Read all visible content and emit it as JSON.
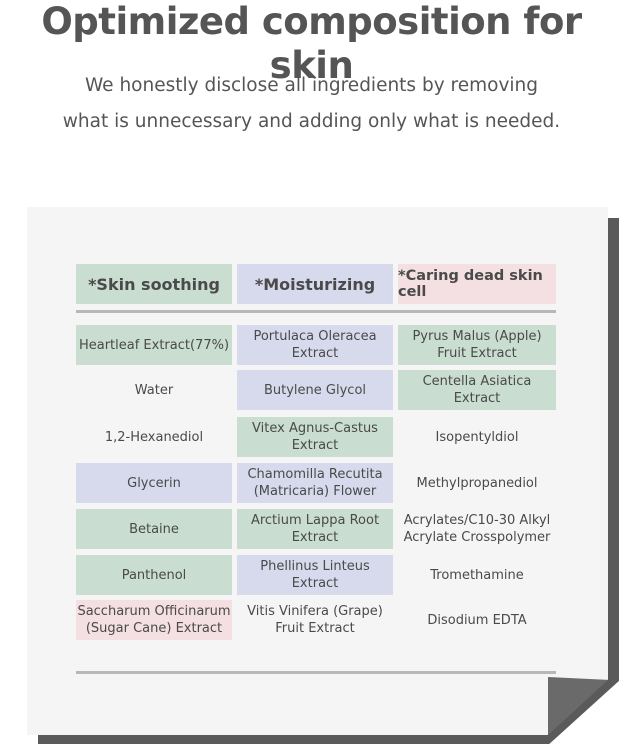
{
  "title": "Optimized composition for skin",
  "subtitle": [
    "We honestly disclose all ingredients by removing",
    "what is unnecessary and adding only what is needed."
  ],
  "colors": {
    "green": "#c9ddd0",
    "blue": "#d6daec",
    "pink": "#f4dfe2"
  },
  "columns": [
    {
      "header": "*Skin soothing",
      "color": "green",
      "items": [
        {
          "text": "Heartleaf Extract(77%)",
          "color": "green"
        },
        {
          "text": "Water",
          "color": "none"
        },
        {
          "text": "1,2-Hexanediol",
          "color": "none"
        },
        {
          "text": "Glycerin",
          "color": "blue"
        },
        {
          "text": "Betaine",
          "color": "green"
        },
        {
          "text": "Panthenol",
          "color": "green"
        },
        {
          "text": "Saccharum Officinarum (Sugar Cane) Extract",
          "color": "pink"
        }
      ]
    },
    {
      "header": "*Moisturizing",
      "color": "blue",
      "items": [
        {
          "text": "Portulaca Oleracea Extract",
          "color": "blue"
        },
        {
          "text": "Butylene Glycol",
          "color": "blue"
        },
        {
          "text": "Vitex Agnus-Castus Extract",
          "color": "green"
        },
        {
          "text": "Chamomilla Recutita (Matricaria) Flower",
          "color": "blue"
        },
        {
          "text": "Arctium Lappa Root Extract",
          "color": "green"
        },
        {
          "text": "Phellinus Linteus Extract",
          "color": "blue"
        },
        {
          "text": "Vitis Vinifera (Grape) Fruit Extract",
          "color": "none"
        }
      ]
    },
    {
      "header": "*Caring dead skin cell",
      "color": "pink",
      "items": [
        {
          "text": "Pyrus Malus (Apple) Fruit Extract",
          "color": "green"
        },
        {
          "text": "Centella Asiatica Extract",
          "color": "green"
        },
        {
          "text": "Isopentyldiol",
          "color": "none"
        },
        {
          "text": "Methylpropanediol",
          "color": "none"
        },
        {
          "text": "Acrylates/C10-30 Alkyl Acrylate Crosspolymer",
          "color": "none"
        },
        {
          "text": "Tromethamine",
          "color": "none"
        },
        {
          "text": "Disodium EDTA",
          "color": "none"
        }
      ]
    }
  ]
}
